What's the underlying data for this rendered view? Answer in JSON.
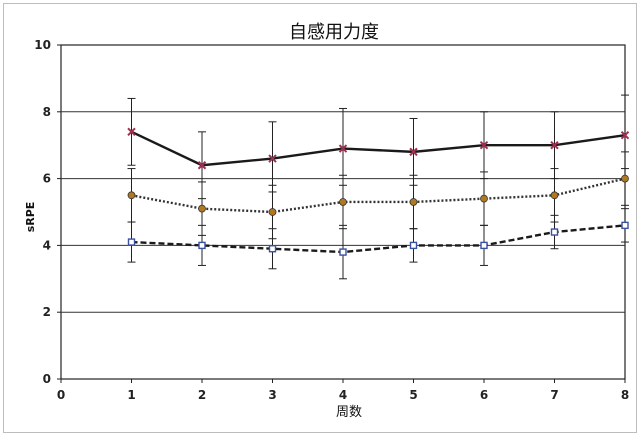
{
  "chart_data": {
    "type": "line",
    "title": "自感用力度",
    "xlabel": "周数",
    "ylabel": "sRPE",
    "x": [
      1,
      2,
      3,
      4,
      5,
      6,
      7,
      8
    ],
    "xlim": [
      0,
      8
    ],
    "ylim": [
      0,
      10
    ],
    "x_ticks": [
      "0",
      "1",
      "2",
      "3",
      "4",
      "5",
      "6",
      "7",
      "8"
    ],
    "y_ticks": [
      "0",
      "2",
      "4",
      "6",
      "8",
      "10"
    ],
    "grid": "horizontal",
    "legend": "none",
    "series": [
      {
        "style": "solid",
        "color": "#1a1a1a",
        "marker_color": "#a03050",
        "values": [
          7.4,
          6.4,
          6.6,
          6.9,
          6.8,
          7.0,
          7.0,
          7.3
        ],
        "err_low": [
          6.4,
          5.4,
          5.6,
          5.8,
          5.8,
          6.0,
          6.0,
          6.3
        ],
        "err_high": [
          8.4,
          7.4,
          7.7,
          8.1,
          7.8,
          8.0,
          8.0,
          8.5
        ]
      },
      {
        "style": "dotted",
        "color": "#333333",
        "marker_color": "#b07820",
        "values": [
          5.5,
          5.1,
          5.0,
          5.3,
          5.3,
          5.4,
          5.5,
          6.0
        ],
        "err_low": [
          4.7,
          4.3,
          4.2,
          4.5,
          4.5,
          4.6,
          4.7,
          5.2
        ],
        "err_high": [
          6.3,
          5.9,
          5.8,
          6.1,
          6.1,
          6.2,
          6.3,
          6.8
        ]
      },
      {
        "style": "dashed",
        "color": "#1a1a1a",
        "marker_color": "#3a50a0",
        "values": [
          4.1,
          4.0,
          3.9,
          3.8,
          4.0,
          4.0,
          4.4,
          4.6
        ],
        "err_low": [
          3.5,
          3.4,
          3.3,
          3.0,
          3.5,
          3.4,
          3.9,
          4.1
        ],
        "err_high": [
          4.7,
          4.6,
          4.5,
          4.6,
          4.5,
          4.6,
          4.9,
          5.1
        ]
      }
    ]
  }
}
